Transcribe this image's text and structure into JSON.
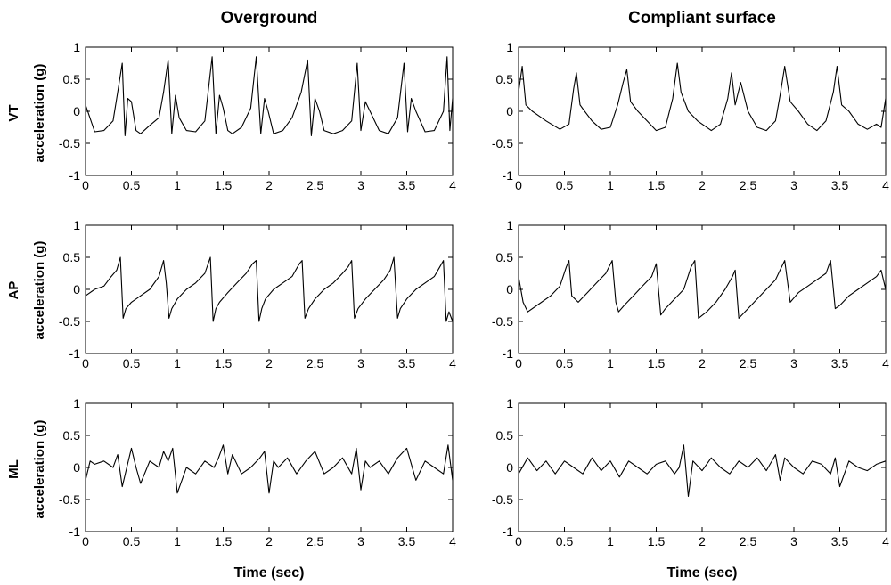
{
  "column_titles": [
    "Overground",
    "Compliant surface"
  ],
  "row_labels": [
    {
      "axis": "VT",
      "quantity": "acceleration (g)"
    },
    {
      "axis": "AP",
      "quantity": "acceleration (g)"
    },
    {
      "axis": "ML",
      "quantity": "acceleration (g)"
    }
  ],
  "xlabel": "Time (sec)",
  "chart_data": [
    {
      "type": "line",
      "row": "VT",
      "column": "Overground",
      "xlim": [
        0,
        4
      ],
      "ylim": [
        -1,
        1
      ],
      "xticks": [
        0,
        0.5,
        1,
        1.5,
        2,
        2.5,
        3,
        3.5,
        4
      ],
      "xtick_labels": [
        "0",
        "0.5",
        "1",
        "1.5",
        "2",
        "2.5",
        "3",
        "3.5",
        "4"
      ],
      "yticks": [
        -1,
        -0.5,
        0,
        0.5,
        1
      ],
      "ytick_labels": [
        "-1",
        "-0.5",
        "0",
        "0.5",
        "1"
      ],
      "x": [
        0,
        0.1,
        0.2,
        0.3,
        0.35,
        0.4,
        0.43,
        0.46,
        0.5,
        0.55,
        0.6,
        0.7,
        0.8,
        0.85,
        0.9,
        0.94,
        0.98,
        1.02,
        1.1,
        1.2,
        1.3,
        1.38,
        1.42,
        1.46,
        1.5,
        1.55,
        1.6,
        1.7,
        1.8,
        1.86,
        1.91,
        1.95,
        1.99,
        2.05,
        2.15,
        2.25,
        2.35,
        2.42,
        2.46,
        2.5,
        2.55,
        2.6,
        2.7,
        2.8,
        2.9,
        2.96,
        3.0,
        3.05,
        3.1,
        3.2,
        3.3,
        3.4,
        3.47,
        3.51,
        3.55,
        3.6,
        3.7,
        3.8,
        3.9,
        3.94,
        3.97,
        4.0
      ],
      "y": [
        0.1,
        -0.32,
        -0.3,
        -0.15,
        0.3,
        0.75,
        -0.38,
        0.2,
        0.15,
        -0.3,
        -0.35,
        -0.22,
        -0.1,
        0.3,
        0.8,
        -0.35,
        0.25,
        -0.1,
        -0.3,
        -0.32,
        -0.15,
        0.85,
        -0.35,
        0.25,
        0.05,
        -0.3,
        -0.35,
        -0.25,
        0.05,
        0.85,
        -0.35,
        0.2,
        0.0,
        -0.35,
        -0.3,
        -0.1,
        0.3,
        0.8,
        -0.38,
        0.2,
        0.0,
        -0.3,
        -0.35,
        -0.3,
        -0.15,
        0.75,
        -0.3,
        0.15,
        0.0,
        -0.3,
        -0.35,
        -0.1,
        0.75,
        -0.32,
        0.2,
        0.0,
        -0.32,
        -0.3,
        0.0,
        0.85,
        -0.3,
        0.2
      ]
    },
    {
      "type": "line",
      "row": "VT",
      "column": "Compliant surface",
      "xlim": [
        0,
        4
      ],
      "ylim": [
        -1,
        1
      ],
      "xticks": [
        0,
        0.5,
        1,
        1.5,
        2,
        2.5,
        3,
        3.5,
        4
      ],
      "xtick_labels": [
        "0",
        "0.5",
        "1",
        "1.5",
        "2",
        "2.5",
        "3",
        "3.5",
        "4"
      ],
      "yticks": [
        -1,
        -0.5,
        0,
        0.5,
        1
      ],
      "ytick_labels": [
        "-1",
        "-0.5",
        "0",
        "0.5",
        "1"
      ],
      "x": [
        0,
        0.04,
        0.08,
        0.15,
        0.3,
        0.45,
        0.55,
        0.6,
        0.63,
        0.67,
        0.72,
        0.8,
        0.9,
        1.0,
        1.08,
        1.14,
        1.18,
        1.22,
        1.3,
        1.4,
        1.5,
        1.6,
        1.68,
        1.73,
        1.77,
        1.85,
        1.95,
        2.1,
        2.2,
        2.28,
        2.32,
        2.36,
        2.42,
        2.5,
        2.6,
        2.7,
        2.8,
        2.85,
        2.9,
        2.96,
        3.05,
        3.15,
        3.25,
        3.35,
        3.43,
        3.47,
        3.52,
        3.6,
        3.7,
        3.8,
        3.9,
        3.95,
        4.0
      ],
      "y": [
        0.3,
        0.7,
        0.1,
        0.0,
        -0.15,
        -0.28,
        -0.2,
        0.35,
        0.6,
        0.1,
        0.0,
        -0.15,
        -0.28,
        -0.25,
        0.1,
        0.45,
        0.65,
        0.15,
        0.0,
        -0.15,
        -0.3,
        -0.25,
        0.2,
        0.75,
        0.3,
        0.0,
        -0.15,
        -0.3,
        -0.2,
        0.2,
        0.6,
        0.1,
        0.45,
        0.0,
        -0.25,
        -0.3,
        -0.15,
        0.25,
        0.7,
        0.15,
        0.0,
        -0.2,
        -0.3,
        -0.15,
        0.3,
        0.7,
        0.1,
        0.0,
        -0.2,
        -0.28,
        -0.2,
        -0.25,
        0.2
      ]
    },
    {
      "type": "line",
      "row": "AP",
      "column": "Overground",
      "xlim": [
        0,
        4
      ],
      "ylim": [
        -1,
        1
      ],
      "xticks": [
        0,
        0.5,
        1,
        1.5,
        2,
        2.5,
        3,
        3.5,
        4
      ],
      "xtick_labels": [
        "0",
        "0.5",
        "1",
        "1.5",
        "2",
        "2.5",
        "3",
        "3.5",
        "4"
      ],
      "yticks": [
        -1,
        -0.5,
        0,
        0.5,
        1
      ],
      "ytick_labels": [
        "-1",
        "-0.5",
        "0",
        "0.5",
        "1"
      ],
      "x": [
        0,
        0.1,
        0.2,
        0.28,
        0.34,
        0.38,
        0.41,
        0.44,
        0.5,
        0.6,
        0.7,
        0.8,
        0.85,
        0.88,
        0.91,
        0.94,
        1.0,
        1.1,
        1.2,
        1.3,
        1.36,
        1.39,
        1.42,
        1.46,
        1.55,
        1.65,
        1.75,
        1.82,
        1.86,
        1.89,
        1.92,
        1.96,
        2.05,
        2.15,
        2.25,
        2.33,
        2.36,
        2.39,
        2.43,
        2.5,
        2.6,
        2.7,
        2.8,
        2.86,
        2.9,
        2.93,
        2.97,
        3.05,
        3.15,
        3.25,
        3.32,
        3.36,
        3.4,
        3.43,
        3.5,
        3.6,
        3.7,
        3.8,
        3.86,
        3.9,
        3.93,
        3.96,
        4.0
      ],
      "y": [
        -0.1,
        0.0,
        0.05,
        0.2,
        0.3,
        0.5,
        -0.45,
        -0.3,
        -0.2,
        -0.1,
        0.0,
        0.2,
        0.45,
        0.1,
        -0.45,
        -0.3,
        -0.15,
        0.0,
        0.1,
        0.25,
        0.5,
        -0.5,
        -0.3,
        -0.2,
        -0.05,
        0.1,
        0.25,
        0.4,
        0.45,
        -0.5,
        -0.3,
        -0.15,
        0.0,
        0.1,
        0.2,
        0.4,
        0.45,
        -0.45,
        -0.3,
        -0.15,
        0.0,
        0.1,
        0.25,
        0.35,
        0.45,
        -0.45,
        -0.3,
        -0.15,
        0.0,
        0.15,
        0.3,
        0.5,
        -0.45,
        -0.3,
        -0.15,
        0.0,
        0.1,
        0.2,
        0.35,
        0.45,
        -0.5,
        -0.35,
        -0.5
      ]
    },
    {
      "type": "line",
      "row": "AP",
      "column": "Compliant surface",
      "xlim": [
        0,
        4
      ],
      "ylim": [
        -1,
        1
      ],
      "xticks": [
        0,
        0.5,
        1,
        1.5,
        2,
        2.5,
        3,
        3.5,
        4
      ],
      "xtick_labels": [
        "0",
        "0.5",
        "1",
        "1.5",
        "2",
        "2.5",
        "3",
        "3.5",
        "4"
      ],
      "yticks": [
        -1,
        -0.5,
        0,
        0.5,
        1
      ],
      "ytick_labels": [
        "-1",
        "-0.5",
        "0",
        "0.5",
        "1"
      ],
      "x": [
        0,
        0.05,
        0.1,
        0.2,
        0.35,
        0.45,
        0.52,
        0.55,
        0.58,
        0.65,
        0.75,
        0.85,
        0.95,
        1.02,
        1.06,
        1.09,
        1.15,
        1.25,
        1.35,
        1.45,
        1.5,
        1.55,
        1.6,
        1.7,
        1.8,
        1.88,
        1.92,
        1.96,
        2.05,
        2.15,
        2.25,
        2.33,
        2.36,
        2.4,
        2.5,
        2.6,
        2.7,
        2.8,
        2.85,
        2.9,
        2.96,
        3.05,
        3.15,
        3.25,
        3.35,
        3.4,
        3.45,
        3.5,
        3.6,
        3.7,
        3.8,
        3.9,
        3.95,
        4.0
      ],
      "y": [
        0.2,
        -0.2,
        -0.35,
        -0.25,
        -0.1,
        0.05,
        0.35,
        0.45,
        -0.1,
        -0.2,
        -0.05,
        0.1,
        0.25,
        0.45,
        -0.2,
        -0.35,
        -0.25,
        -0.1,
        0.05,
        0.2,
        0.4,
        -0.4,
        -0.3,
        -0.15,
        0.0,
        0.35,
        0.45,
        -0.45,
        -0.35,
        -0.2,
        0.0,
        0.2,
        0.3,
        -0.45,
        -0.3,
        -0.15,
        0.0,
        0.15,
        0.3,
        0.45,
        -0.2,
        -0.05,
        0.05,
        0.15,
        0.25,
        0.45,
        -0.3,
        -0.25,
        -0.1,
        0.0,
        0.1,
        0.2,
        0.3,
        0.0
      ]
    },
    {
      "type": "line",
      "row": "ML",
      "column": "Overground",
      "xlim": [
        0,
        4
      ],
      "ylim": [
        -1,
        1
      ],
      "xticks": [
        0,
        0.5,
        1,
        1.5,
        2,
        2.5,
        3,
        3.5,
        4
      ],
      "xtick_labels": [
        "0",
        "0.5",
        "1",
        "1.5",
        "2",
        "2.5",
        "3",
        "3.5",
        "4"
      ],
      "yticks": [
        -1,
        -0.5,
        0,
        0.5,
        1
      ],
      "ytick_labels": [
        "-1",
        "-0.5",
        "0",
        "0.5",
        "1"
      ],
      "x": [
        0,
        0.05,
        0.1,
        0.2,
        0.3,
        0.35,
        0.4,
        0.45,
        0.5,
        0.55,
        0.6,
        0.7,
        0.8,
        0.85,
        0.9,
        0.95,
        1.0,
        1.1,
        1.2,
        1.3,
        1.4,
        1.45,
        1.5,
        1.55,
        1.6,
        1.7,
        1.8,
        1.9,
        1.95,
        2.0,
        2.05,
        2.1,
        2.2,
        2.3,
        2.4,
        2.5,
        2.6,
        2.7,
        2.8,
        2.9,
        2.95,
        3.0,
        3.05,
        3.1,
        3.2,
        3.3,
        3.4,
        3.5,
        3.6,
        3.7,
        3.8,
        3.9,
        3.95,
        4.0
      ],
      "y": [
        -0.2,
        0.1,
        0.05,
        0.1,
        0.0,
        0.2,
        -0.3,
        0.0,
        0.3,
        0.0,
        -0.25,
        0.1,
        0.0,
        0.25,
        0.1,
        0.3,
        -0.4,
        0.0,
        -0.1,
        0.1,
        0.0,
        0.15,
        0.35,
        -0.1,
        0.2,
        -0.1,
        0.0,
        0.15,
        0.25,
        -0.4,
        0.1,
        0.0,
        0.15,
        -0.1,
        0.1,
        0.25,
        -0.1,
        0.0,
        0.15,
        -0.1,
        0.3,
        -0.35,
        0.1,
        0.0,
        0.1,
        -0.1,
        0.15,
        0.3,
        -0.2,
        0.1,
        0.0,
        -0.1,
        0.35,
        -0.2
      ]
    },
    {
      "type": "line",
      "row": "ML",
      "column": "Compliant surface",
      "xlim": [
        0,
        4
      ],
      "ylim": [
        -1,
        1
      ],
      "xticks": [
        0,
        0.5,
        1,
        1.5,
        2,
        2.5,
        3,
        3.5,
        4
      ],
      "xtick_labels": [
        "0",
        "0.5",
        "1",
        "1.5",
        "2",
        "2.5",
        "3",
        "3.5",
        "4"
      ],
      "yticks": [
        -1,
        -0.5,
        0,
        0.5,
        1
      ],
      "ytick_labels": [
        "-1",
        "-0.5",
        "0",
        "0.5",
        "1"
      ],
      "x": [
        0,
        0.1,
        0.2,
        0.3,
        0.4,
        0.5,
        0.6,
        0.7,
        0.8,
        0.9,
        1.0,
        1.1,
        1.2,
        1.3,
        1.4,
        1.5,
        1.6,
        1.7,
        1.75,
        1.8,
        1.85,
        1.9,
        2.0,
        2.1,
        2.2,
        2.3,
        2.4,
        2.5,
        2.6,
        2.7,
        2.8,
        2.85,
        2.9,
        3.0,
        3.1,
        3.2,
        3.3,
        3.4,
        3.45,
        3.5,
        3.6,
        3.7,
        3.8,
        3.9,
        4.0
      ],
      "y": [
        -0.1,
        0.15,
        -0.05,
        0.1,
        -0.1,
        0.1,
        0.0,
        -0.1,
        0.15,
        -0.05,
        0.1,
        -0.15,
        0.1,
        0.0,
        -0.1,
        0.05,
        0.1,
        -0.1,
        0.0,
        0.35,
        -0.45,
        0.1,
        -0.05,
        0.15,
        0.0,
        -0.1,
        0.1,
        0.0,
        0.15,
        -0.05,
        0.2,
        -0.2,
        0.15,
        0.0,
        -0.1,
        0.1,
        0.05,
        -0.1,
        0.15,
        -0.3,
        0.1,
        0.0,
        -0.05,
        0.05,
        0.1
      ]
    }
  ]
}
